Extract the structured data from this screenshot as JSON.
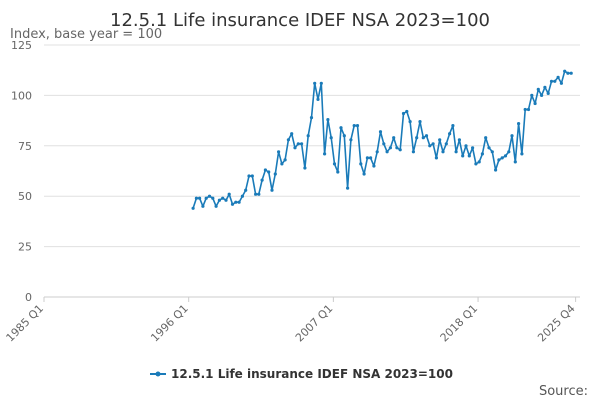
{
  "chart_data": {
    "type": "line",
    "title": "12.5.1 Life insurance IDEF NSA 2023=100",
    "ylabel": "Index, base year = 100",
    "xlabel": "",
    "ylim": [
      0,
      125
    ],
    "yticks": [
      0,
      25,
      50,
      75,
      100,
      125
    ],
    "x_tick_labels": [
      "1985 Q1",
      "1996 Q1",
      "2007 Q1",
      "2018 Q1",
      "2025 Q4"
    ],
    "x_tick_index": [
      0,
      132,
      264,
      396,
      485
    ],
    "total_months": 490,
    "legend_position": "bottom-center",
    "series": [
      {
        "name": "12.5.1 Life insurance IDEF NSA 2023=100",
        "color": "#1a7bb9",
        "start_month_index": 136,
        "values": [
          44,
          49,
          49,
          45,
          49,
          50,
          49,
          45,
          48,
          49,
          48,
          51,
          46,
          47,
          47,
          50,
          53,
          60,
          60,
          51,
          51,
          58,
          63,
          62,
          53,
          61,
          72,
          66,
          68,
          78,
          81,
          74,
          76,
          76,
          64,
          80,
          89,
          106,
          98,
          106,
          71,
          88,
          79,
          66,
          62,
          84,
          80,
          54,
          78,
          85,
          85,
          66,
          61,
          69,
          69,
          65,
          72,
          82,
          76,
          72,
          74,
          79,
          74,
          73,
          91,
          92,
          87,
          72,
          79,
          87,
          79,
          80,
          75,
          76,
          69,
          78,
          72,
          76,
          81,
          85,
          72,
          78,
          70,
          75,
          70,
          74,
          66,
          67,
          71,
          79,
          74,
          72,
          63,
          68,
          69,
          70,
          72,
          80,
          67,
          86,
          71,
          93,
          93,
          100,
          96,
          103,
          100,
          104,
          101,
          107,
          107,
          109,
          106,
          112,
          111,
          111
        ]
      }
    ]
  },
  "source_label": "Source:",
  "colors": {
    "line": "#1a7bb9",
    "grid": "#e0e0e0",
    "axis": "#cccccc"
  }
}
